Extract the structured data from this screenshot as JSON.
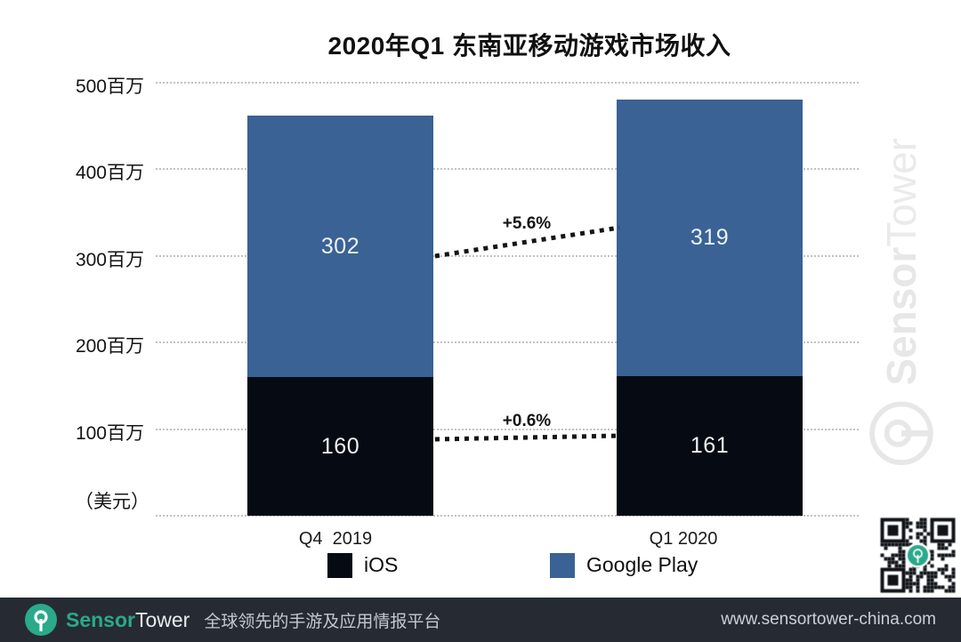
{
  "title": "2020年Q1 东南亚移动游戏市场收入",
  "chart_data": {
    "type": "bar",
    "stacked": true,
    "categories": [
      "Q4  2019",
      "Q1 2020"
    ],
    "series": [
      {
        "name": "iOS",
        "values": [
          160,
          161
        ],
        "color": "#060a12"
      },
      {
        "name": "Google Play",
        "values": [
          302,
          319
        ],
        "color": "#3a6295"
      }
    ],
    "annotations": [
      {
        "label": "+5.6%",
        "applies_to": "Google Play"
      },
      {
        "label": "+0.6%",
        "applies_to": "iOS"
      }
    ],
    "y_ticks": [
      {
        "value": 500,
        "label": "500百万"
      },
      {
        "value": 400,
        "label": "400百万"
      },
      {
        "value": 300,
        "label": "300百万"
      },
      {
        "value": 200,
        "label": "200百万"
      },
      {
        "value": 100,
        "label": "100百万"
      }
    ],
    "y_unit": "（美元）",
    "ylim": [
      0,
      500
    ],
    "grid": "dotted horizontal",
    "legend_position": "bottom"
  },
  "watermark": {
    "sensor": "Sensor",
    "tower": "Tower"
  },
  "icons": {
    "brand_logo": "sensortower-logo",
    "watermark_logo": "sensortower-logo",
    "qr_code": "qr-code"
  },
  "footer": {
    "brand_sensor": "Sensor",
    "brand_tower": "Tower",
    "tagline": "全球领先的手游及应用情报平台",
    "url": "www.sensortower-china.com"
  },
  "colors": {
    "google_play": "#3a6295",
    "ios": "#060a12",
    "teal": "#2aa98b",
    "footer_bg": "#262b33",
    "gridline": "#c2c2c2",
    "connector": "#151515",
    "watermark": "#e7e7e7"
  }
}
